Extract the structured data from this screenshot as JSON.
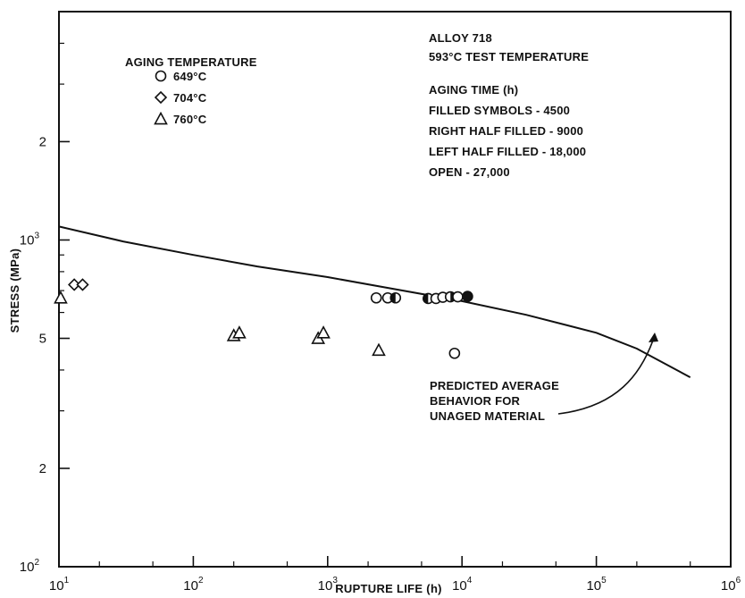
{
  "chart_data": {
    "type": "scatter",
    "xlabel": "RUPTURE LIFE (h)",
    "ylabel": "STRESS (MPa)",
    "x_scale": "log",
    "y_scale": "log",
    "xlim": [
      10,
      1000000
    ],
    "ylim": [
      100,
      5000
    ],
    "x_major_ticks": [
      {
        "value": 10,
        "base": "10",
        "exp": "1"
      },
      {
        "value": 100,
        "base": "10",
        "exp": "2"
      },
      {
        "value": 1000,
        "base": "10",
        "exp": "3"
      },
      {
        "value": 10000,
        "base": "10",
        "exp": "4"
      },
      {
        "value": 100000,
        "base": "10",
        "exp": "5"
      },
      {
        "value": 1000000,
        "base": "10",
        "exp": "6"
      }
    ],
    "x_minor_ticks": [
      20,
      50,
      200,
      500,
      2000,
      5000,
      20000,
      50000,
      200000,
      500000
    ],
    "y_major_ticks": [
      {
        "value": 100,
        "label": "10",
        "exp": "2"
      },
      {
        "value": 200,
        "label": "2",
        "exp": ""
      },
      {
        "value": 500,
        "label": "5",
        "exp": ""
      },
      {
        "value": 1000,
        "label": "10",
        "exp": "3"
      },
      {
        "value": 2000,
        "label": "2",
        "exp": ""
      }
    ],
    "y_minor_ticks": [
      300,
      400,
      600,
      700,
      800,
      900,
      3000,
      4000
    ],
    "grid": false,
    "legend": {
      "title": "AGING TEMPERATURE",
      "entries": [
        {
          "marker": "circle",
          "label": "649°C"
        },
        {
          "marker": "diamond",
          "label": "704°C"
        },
        {
          "marker": "triangle",
          "label": "760°C"
        }
      ]
    },
    "annotation_lines": [
      "ALLOY 718",
      "593°C TEST TEMPERATURE",
      "AGING TIME (h)",
      "FILLED SYMBOLS - 4500",
      "RIGHT HALF FILLED - 9000",
      "LEFT HALF FILLED - 18,000",
      "OPEN - 27,000"
    ],
    "curve_label": [
      "PREDICTED AVERAGE",
      "BEHAVIOR FOR",
      "UNAGED MATERIAL"
    ],
    "predicted_curve": {
      "x": [
        10,
        30,
        100,
        300,
        1000,
        3000,
        10000,
        30000,
        100000,
        200000,
        500000
      ],
      "y": [
        1100,
        990,
        900,
        830,
        770,
        710,
        650,
        590,
        520,
        465,
        380
      ]
    },
    "series": [
      {
        "name": "649°C",
        "marker": "circle",
        "points": [
          {
            "x": 2300,
            "y": 665,
            "fill": "open"
          },
          {
            "x": 2800,
            "y": 665,
            "fill": "open"
          },
          {
            "x": 3200,
            "y": 665,
            "fill": "left"
          },
          {
            "x": 5600,
            "y": 662,
            "fill": "left"
          },
          {
            "x": 6400,
            "y": 662,
            "fill": "open"
          },
          {
            "x": 7200,
            "y": 668,
            "fill": "open"
          },
          {
            "x": 8200,
            "y": 670,
            "fill": "right"
          },
          {
            "x": 9300,
            "y": 670,
            "fill": "open"
          },
          {
            "x": 11000,
            "y": 672,
            "fill": "filled"
          },
          {
            "x": 8800,
            "y": 450,
            "fill": "open"
          }
        ]
      },
      {
        "name": "704°C",
        "marker": "diamond",
        "points": [
          {
            "x": 13,
            "y": 730,
            "fill": "open"
          },
          {
            "x": 15,
            "y": 730,
            "fill": "open"
          }
        ]
      },
      {
        "name": "760°C",
        "marker": "triangle",
        "points": [
          {
            "x": 10.3,
            "y": 665,
            "fill": "open"
          },
          {
            "x": 200,
            "y": 510,
            "fill": "open"
          },
          {
            "x": 220,
            "y": 520,
            "fill": "open"
          },
          {
            "x": 850,
            "y": 500,
            "fill": "open"
          },
          {
            "x": 930,
            "y": 520,
            "fill": "open"
          },
          {
            "x": 2400,
            "y": 460,
            "fill": "open"
          }
        ]
      }
    ]
  }
}
